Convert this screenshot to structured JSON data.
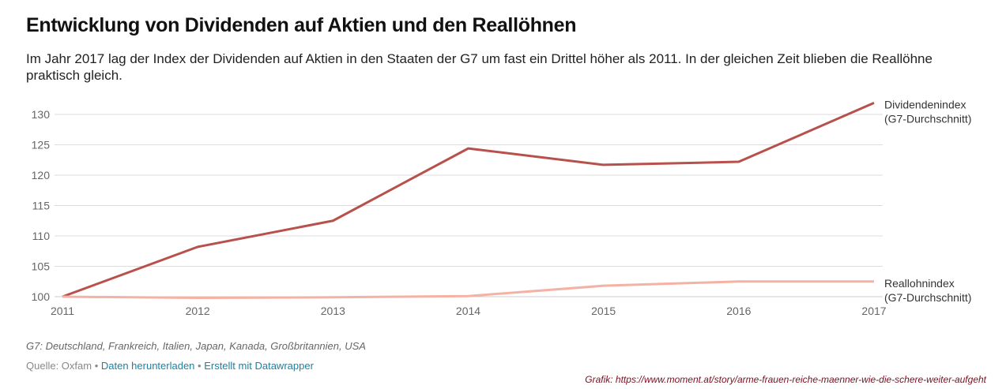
{
  "title": "Entwicklung von Dividenden auf Aktien und den Reallöhnen",
  "subtitle": "Im Jahr 2017 lag der Index der Dividenden auf Aktien in den Staaten der G7 um fast ein Drittel höher als 2011. In der gleichen Zeit blieben die Reallöhne praktisch gleich.",
  "chart_data": {
    "type": "line",
    "x": [
      "2011",
      "2012",
      "2013",
      "2014",
      "2015",
      "2016",
      "2017"
    ],
    "yticks": [
      "100",
      "105",
      "110",
      "115",
      "120",
      "125",
      "130"
    ],
    "ylim": [
      100,
      130
    ],
    "grid": true,
    "series": [
      {
        "name": "Dividendenindex",
        "name2": "(G7-Durchschnitt)",
        "color": "#b8504b",
        "values": [
          100,
          108.2,
          112.5,
          124.4,
          121.7,
          122.2,
          131.9
        ]
      },
      {
        "name": "Reallohnindex",
        "name2": "(G7-Durchschnitt)",
        "color": "#f4b2a4",
        "values": [
          100,
          99.8,
          99.9,
          100.1,
          101.8,
          102.5,
          102.5
        ]
      }
    ]
  },
  "footer": {
    "note": "G7: Deutschland, Frankreich, Italien, Japan, Kanada, Großbritannien, USA",
    "source": "Quelle: Oxfam",
    "sep": " • ",
    "download": "Daten herunterladen",
    "made_with": "Erstellt mit Datawrapper",
    "credit": "Grafik: https://www.moment.at/story/arme-frauen-reiche-maenner-wie-die-schere-weiter-aufgeht"
  }
}
